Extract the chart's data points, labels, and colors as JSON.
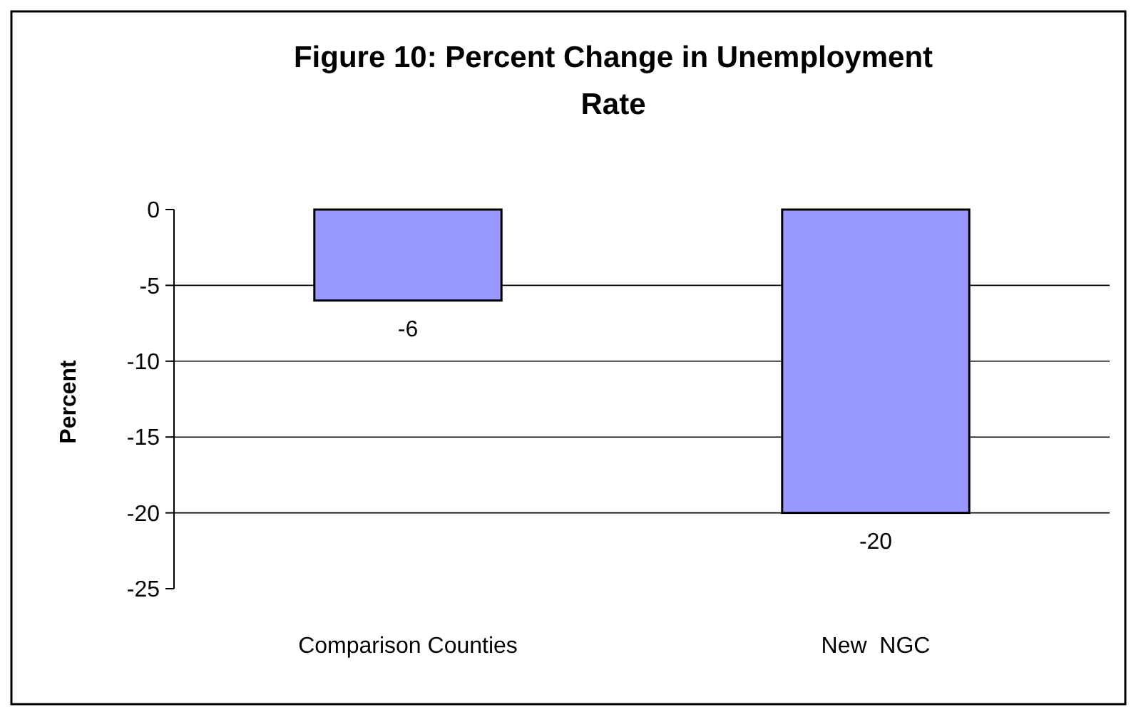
{
  "chart_data": {
    "type": "bar",
    "title": "Figure 10: Percent Change in Unemployment Rate",
    "ylabel": "Percent",
    "categories": [
      "Comparison Counties",
      "New  NGC"
    ],
    "values": [
      -6,
      -20
    ],
    "color": "#9999ff",
    "ylim": [
      -25,
      0
    ],
    "yticks": [
      0,
      -5,
      -10,
      -15,
      -20,
      -25
    ],
    "grid": "y",
    "data_labels": true
  }
}
